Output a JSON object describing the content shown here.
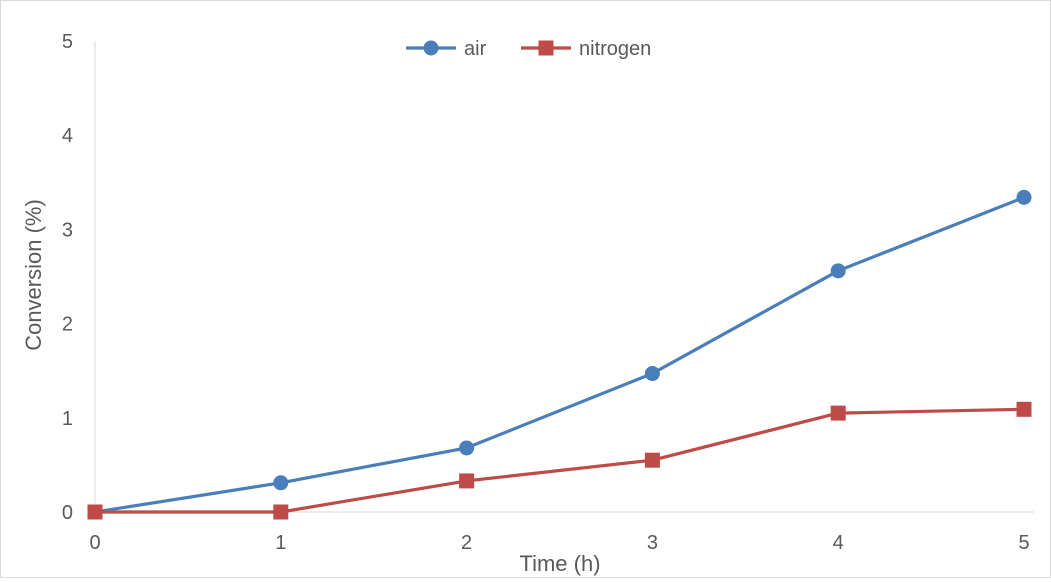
{
  "chart_data": {
    "type": "line",
    "title": "",
    "xlabel": "Time (h)",
    "ylabel": "Conversion (%)",
    "x": [
      0,
      1,
      2,
      3,
      4,
      5
    ],
    "xticks": [
      "0",
      "1",
      "2",
      "3",
      "4",
      "5"
    ],
    "yticks": [
      "0",
      "1",
      "2",
      "3",
      "4",
      "5"
    ],
    "xlim": [
      0,
      5
    ],
    "ylim": [
      0,
      5
    ],
    "grid": false,
    "legend_position": "top-center",
    "series": [
      {
        "name": "air",
        "marker": "circle",
        "color": "#4a7ebb",
        "values": [
          0,
          0.31,
          0.68,
          1.47,
          2.56,
          3.34
        ]
      },
      {
        "name": "nitrogen",
        "marker": "square",
        "color": "#be4b48",
        "values": [
          0,
          0,
          0.33,
          0.55,
          1.05,
          1.09
        ]
      }
    ]
  }
}
